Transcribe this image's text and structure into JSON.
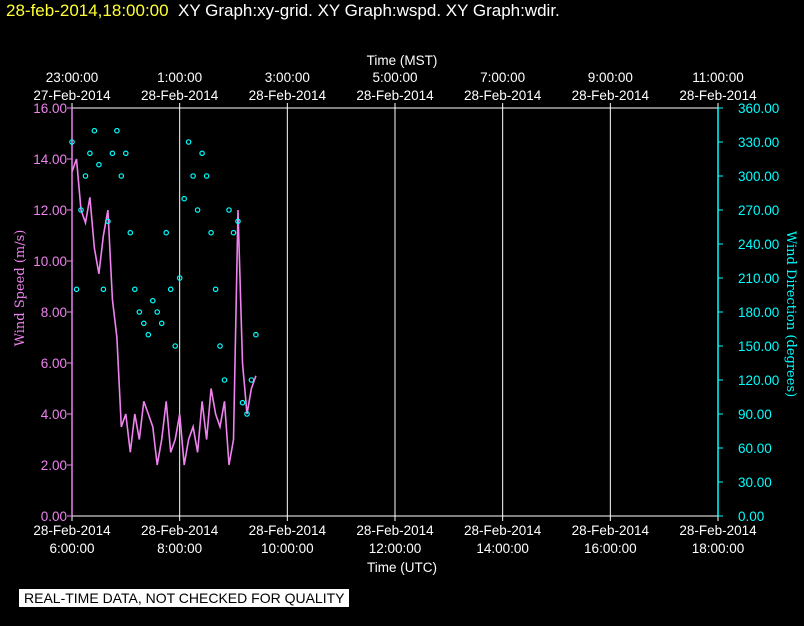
{
  "header": {
    "timestamp": "28-feb-2014,18:00:00",
    "graphs": "XY Graph:xy-grid.  XY Graph:wspd.  XY Graph:wdir."
  },
  "disclaimer": "REAL-TIME DATA, NOT CHECKED FOR QUALITY",
  "colors": {
    "background": "#000000",
    "wind_speed": "#ee82ee",
    "wind_direction": "#00ffff",
    "grid": "#ffffff",
    "timestamp": "#ffff33"
  },
  "chart_data": {
    "type": "line",
    "x_top": {
      "label": "Time (MST)",
      "ticks": [
        {
          "time": "23:00:00",
          "date": "27-Feb-2014"
        },
        {
          "time": "1:00:00",
          "date": "28-Feb-2014"
        },
        {
          "time": "3:00:00",
          "date": "28-Feb-2014"
        },
        {
          "time": "5:00:00",
          "date": "28-Feb-2014"
        },
        {
          "time": "7:00:00",
          "date": "28-Feb-2014"
        },
        {
          "time": "9:00:00",
          "date": "28-Feb-2014"
        },
        {
          "time": "11:00:00",
          "date": "28-Feb-2014"
        }
      ]
    },
    "x_bottom": {
      "label": "Time (UTC)",
      "ticks": [
        {
          "date": "28-Feb-2014",
          "time": "6:00:00"
        },
        {
          "date": "28-Feb-2014",
          "time": "8:00:00"
        },
        {
          "date": "28-Feb-2014",
          "time": "10:00:00"
        },
        {
          "date": "28-Feb-2014",
          "time": "12:00:00"
        },
        {
          "date": "28-Feb-2014",
          "time": "14:00:00"
        },
        {
          "date": "28-Feb-2014",
          "time": "16:00:00"
        },
        {
          "date": "28-Feb-2014",
          "time": "18:00:00"
        }
      ]
    },
    "y_left": {
      "label": "Wind Speed (m/s)",
      "ylim": [
        0,
        16
      ],
      "ticks": [
        "0.00",
        "2.00",
        "4.00",
        "6.00",
        "8.00",
        "10.00",
        "12.00",
        "14.00",
        "16.00"
      ]
    },
    "y_right": {
      "label": "Wind Direction (degrees)",
      "ylim": [
        0,
        360
      ],
      "ticks": [
        "0.00",
        "30.00",
        "60.00",
        "90.00",
        "120.00",
        "150.00",
        "180.00",
        "210.00",
        "240.00",
        "270.00",
        "300.00",
        "330.00",
        "360.00"
      ]
    },
    "grid": "vertical",
    "series": [
      {
        "name": "wspd",
        "style": "line",
        "x": [
          "2014-02-28 06:00",
          "2014-02-28 06:05",
          "2014-02-28 06:10",
          "2014-02-28 06:15",
          "2014-02-28 06:20",
          "2014-02-28 06:25",
          "2014-02-28 06:30",
          "2014-02-28 06:35",
          "2014-02-28 06:40",
          "2014-02-28 06:45",
          "2014-02-28 06:50",
          "2014-02-28 06:55",
          "2014-02-28 07:00",
          "2014-02-28 07:05",
          "2014-02-28 07:10",
          "2014-02-28 07:15",
          "2014-02-28 07:20",
          "2014-02-28 07:25",
          "2014-02-28 07:30",
          "2014-02-28 07:35",
          "2014-02-28 07:40",
          "2014-02-28 07:45",
          "2014-02-28 07:50",
          "2014-02-28 07:55",
          "2014-02-28 08:00",
          "2014-02-28 08:05",
          "2014-02-28 08:10",
          "2014-02-28 08:15",
          "2014-02-28 08:20",
          "2014-02-28 08:25",
          "2014-02-28 08:30",
          "2014-02-28 08:35",
          "2014-02-28 08:40",
          "2014-02-28 08:45",
          "2014-02-28 08:50",
          "2014-02-28 08:55",
          "2014-02-28 09:00",
          "2014-02-28 09:05",
          "2014-02-28 09:10",
          "2014-02-28 09:15",
          "2014-02-28 09:20",
          "2014-02-28 09:25"
        ],
        "values": [
          13.5,
          14.0,
          12.0,
          11.5,
          12.5,
          10.5,
          9.5,
          11.0,
          12.0,
          8.5,
          7.0,
          3.5,
          4.0,
          2.5,
          4.0,
          3.0,
          4.5,
          4.0,
          3.5,
          2.0,
          3.0,
          4.5,
          2.5,
          3.0,
          4.0,
          2.0,
          3.0,
          3.5,
          2.5,
          4.5,
          3.0,
          5.0,
          4.0,
          3.5,
          4.5,
          2.0,
          3.0,
          12.0,
          6.0,
          4.0,
          5.0,
          5.5
        ]
      },
      {
        "name": "wdir",
        "style": "markers",
        "x": [
          "2014-02-28 06:00",
          "2014-02-28 06:05",
          "2014-02-28 06:10",
          "2014-02-28 06:15",
          "2014-02-28 06:20",
          "2014-02-28 06:25",
          "2014-02-28 06:30",
          "2014-02-28 06:35",
          "2014-02-28 06:40",
          "2014-02-28 06:45",
          "2014-02-28 06:50",
          "2014-02-28 06:55",
          "2014-02-28 07:00",
          "2014-02-28 07:05",
          "2014-02-28 07:10",
          "2014-02-28 07:15",
          "2014-02-28 07:20",
          "2014-02-28 07:25",
          "2014-02-28 07:30",
          "2014-02-28 07:35",
          "2014-02-28 07:40",
          "2014-02-28 07:45",
          "2014-02-28 07:50",
          "2014-02-28 07:55",
          "2014-02-28 08:00",
          "2014-02-28 08:05",
          "2014-02-28 08:10",
          "2014-02-28 08:15",
          "2014-02-28 08:20",
          "2014-02-28 08:25",
          "2014-02-28 08:30",
          "2014-02-28 08:35",
          "2014-02-28 08:40",
          "2014-02-28 08:45",
          "2014-02-28 08:50",
          "2014-02-28 08:55",
          "2014-02-28 09:00",
          "2014-02-28 09:05",
          "2014-02-28 09:10",
          "2014-02-28 09:15",
          "2014-02-28 09:20",
          "2014-02-28 09:25"
        ],
        "values": [
          330,
          200,
          270,
          300,
          320,
          340,
          310,
          200,
          260,
          320,
          340,
          300,
          320,
          250,
          200,
          180,
          170,
          160,
          190,
          180,
          170,
          250,
          200,
          150,
          210,
          280,
          330,
          300,
          270,
          320,
          300,
          250,
          200,
          150,
          120,
          270,
          250,
          260,
          100,
          90,
          120,
          160
        ]
      }
    ]
  }
}
